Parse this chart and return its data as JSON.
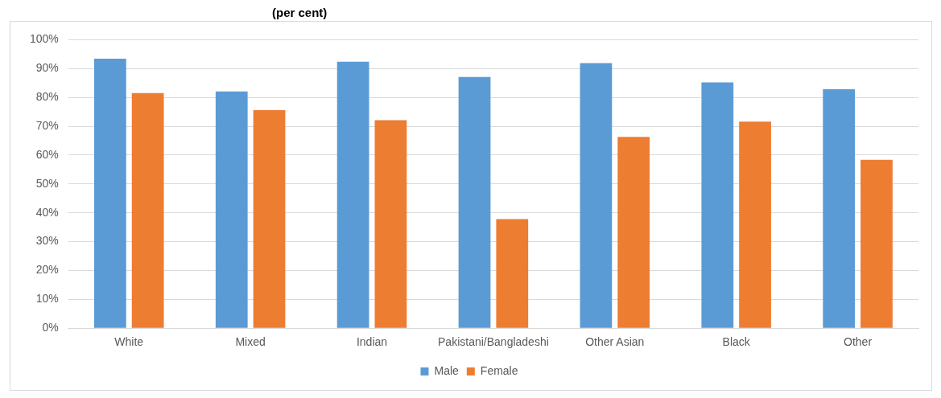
{
  "chart_data": {
    "type": "bar",
    "title": "(per cent)",
    "categories": [
      "White",
      "Mixed",
      "Indian",
      "Pakistani/Bangladeshi",
      "Other Asian",
      "Black",
      "Other"
    ],
    "series": [
      {
        "name": "Male",
        "color": "#5b9bd5",
        "values": [
          93.4,
          82.1,
          92.4,
          87.1,
          91.9,
          85.2,
          82.8
        ]
      },
      {
        "name": "Female",
        "color": "#ed7d31",
        "values": [
          81.5,
          75.6,
          72.1,
          37.8,
          66.3,
          71.6,
          58.4
        ]
      }
    ],
    "ylim": [
      0,
      100
    ],
    "yticks": [
      {
        "value": 0,
        "label": "0%"
      },
      {
        "value": 10,
        "label": "10%"
      },
      {
        "value": 20,
        "label": "20%"
      },
      {
        "value": 30,
        "label": "30%"
      },
      {
        "value": 40,
        "label": "40%"
      },
      {
        "value": 50,
        "label": "50%"
      },
      {
        "value": 60,
        "label": "60%"
      },
      {
        "value": 70,
        "label": "70%"
      },
      {
        "value": 80,
        "label": "80%"
      },
      {
        "value": 90,
        "label": "90%"
      },
      {
        "value": 100,
        "label": "100%"
      }
    ],
    "grid": "y",
    "legend": "bottom"
  }
}
